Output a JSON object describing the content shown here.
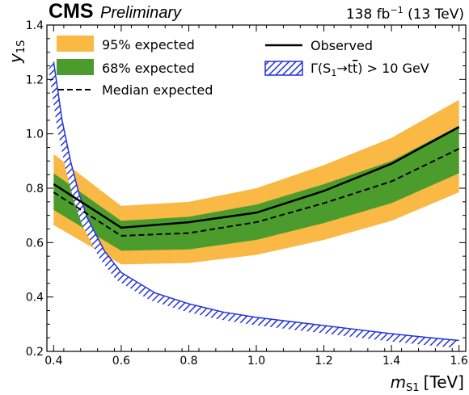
{
  "header": {
    "experiment": "CMS",
    "status": "Preliminary",
    "lumi_value": "138 fb",
    "lumi_exp": "−1",
    "energy": " (13 TeV)"
  },
  "chart_data": {
    "type": "line",
    "xlabel": {
      "symbol": "m",
      "subscript": "S1",
      "unit": "[TeV]"
    },
    "ylabel": {
      "symbol": "y",
      "subscript": "1S"
    },
    "xlim": [
      0.38,
      1.62
    ],
    "ylim": [
      0.2,
      1.4
    ],
    "xticks": [
      0.4,
      0.6,
      0.8,
      1.0,
      1.2,
      1.4,
      1.6
    ],
    "yticks": [
      0.2,
      0.4,
      0.6,
      0.8,
      1.0,
      1.2,
      1.4
    ],
    "x": [
      0.4,
      0.6,
      0.8,
      1.0,
      1.2,
      1.4,
      1.6
    ],
    "series": [
      {
        "name": "Observed",
        "values": [
          0.815,
          0.655,
          0.675,
          0.71,
          0.79,
          0.89,
          1.025
        ],
        "color": "#000000",
        "style": "solid"
      },
      {
        "name": "Median expected",
        "values": [
          0.785,
          0.625,
          0.635,
          0.675,
          0.745,
          0.825,
          0.945
        ],
        "color": "#000000",
        "style": "dashed"
      }
    ],
    "bands": [
      {
        "name": "95% expected",
        "color": "#f9b944",
        "lower": [
          0.665,
          0.52,
          0.525,
          0.555,
          0.61,
          0.68,
          0.785
        ],
        "upper": [
          0.925,
          0.735,
          0.75,
          0.8,
          0.885,
          0.985,
          1.125
        ]
      },
      {
        "name": "68% expected",
        "color": "#4c9c2d",
        "lower": [
          0.72,
          0.57,
          0.575,
          0.61,
          0.672,
          0.745,
          0.855
        ],
        "upper": [
          0.855,
          0.68,
          0.695,
          0.74,
          0.815,
          0.9,
          1.03
        ]
      }
    ],
    "width_curve": {
      "name": "Γ(S₁→tt̄) > 10 GeV",
      "color": "#2233dd",
      "hatch": "diagonal",
      "x": [
        0.4,
        0.425,
        0.45,
        0.475,
        0.5,
        0.55,
        0.6,
        0.7,
        0.8,
        0.9,
        1.0,
        1.1,
        1.2,
        1.3,
        1.4,
        1.5,
        1.6
      ],
      "values": [
        1.265,
        1.05,
        0.9,
        0.78,
        0.69,
        0.57,
        0.49,
        0.415,
        0.375,
        0.345,
        0.325,
        0.31,
        0.295,
        0.28,
        0.265,
        0.252,
        0.24
      ]
    },
    "legend": [
      {
        "label": "95% expected",
        "kind": "band",
        "ref": "95"
      },
      {
        "label": "68% expected",
        "kind": "band",
        "ref": "68"
      },
      {
        "label": "Median expected",
        "kind": "dashed"
      },
      {
        "label": "Observed",
        "kind": "solid"
      },
      {
        "label_pre": "Γ(S",
        "label_sub1": "1",
        "label_mid": "→t",
        "label_bar": "t",
        "label_post": ") > 10 GeV",
        "kind": "hatch"
      }
    ],
    "legend_placement": "top",
    "grid": false
  }
}
